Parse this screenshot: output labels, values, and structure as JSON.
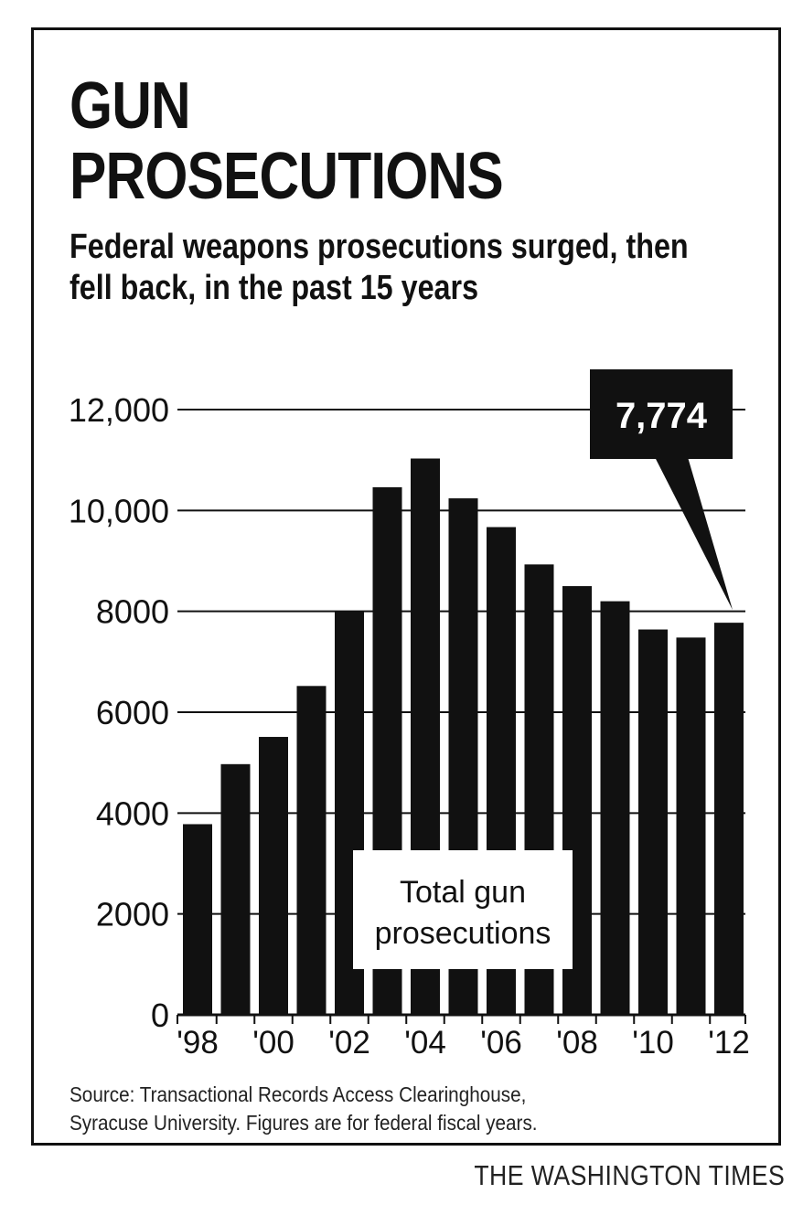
{
  "header": {
    "title_line1": "GUN",
    "title_line2": "PROSECUTIONS",
    "subtitle": "Federal weapons prosecutions surged, then fell back, in the past 15 years"
  },
  "chart_data": {
    "type": "bar",
    "categories": [
      "1998",
      "1999",
      "2000",
      "2001",
      "2002",
      "2003",
      "2004",
      "2005",
      "2006",
      "2007",
      "2008",
      "2009",
      "2010",
      "2011",
      "2012"
    ],
    "values": [
      3780,
      4970,
      5510,
      6520,
      8000,
      10460,
      11030,
      10240,
      9670,
      8930,
      8500,
      8200,
      7640,
      7480,
      7774
    ],
    "x_tick_labels": [
      "'98",
      "",
      "'00",
      "",
      "'02",
      "",
      "'04",
      "",
      "'06",
      "",
      "'08",
      "",
      "'10",
      "",
      "'12"
    ],
    "y_tick_labels": [
      "0",
      "2000",
      "4000",
      "6000",
      "8000",
      "10,000",
      "12,000"
    ],
    "y_ticks": [
      0,
      2000,
      4000,
      6000,
      8000,
      10000,
      12000
    ],
    "ylim": [
      0,
      12000
    ],
    "grid": true,
    "legend_label": "Total gun prosecutions",
    "legend_line1": "Total gun",
    "legend_line2": "prosecutions",
    "legend_placement": "bottom-center",
    "callout": {
      "category": "2012",
      "label": "7,774"
    },
    "bar_color": "#111111"
  },
  "footer": {
    "source_line1": "Source: Transactional Records Access Clearinghouse,",
    "source_line2": "Syracuse University. Figures are for federal fiscal years.",
    "credit": "THE WASHINGTON TIMES"
  }
}
